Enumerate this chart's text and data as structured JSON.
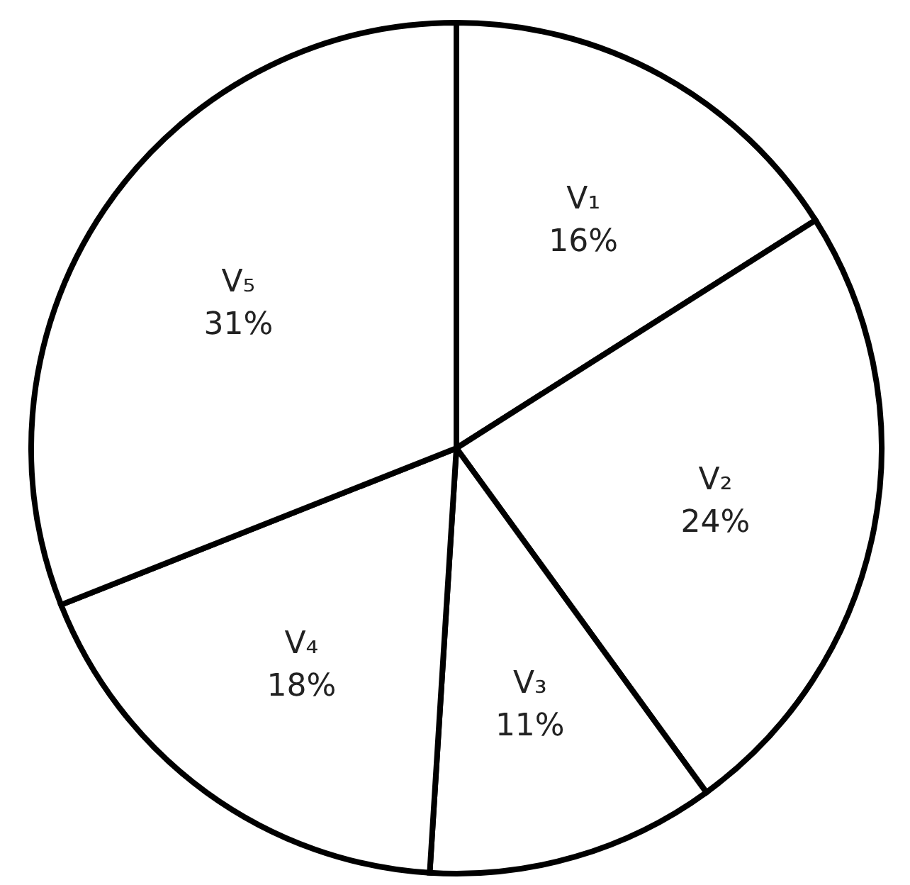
{
  "chart_data": {
    "type": "pie",
    "categories": [
      "V₁",
      "V₂",
      "V₃",
      "V₄",
      "V₅"
    ],
    "values": [
      16,
      24,
      11,
      18,
      31
    ],
    "colors": [
      "#ffffff",
      "#ffffff",
      "#ffffff",
      "#ffffff",
      "#ffffff"
    ],
    "value_labels": [
      "16%",
      "24%",
      "11%",
      "18%",
      "31%"
    ],
    "legend": false
  }
}
